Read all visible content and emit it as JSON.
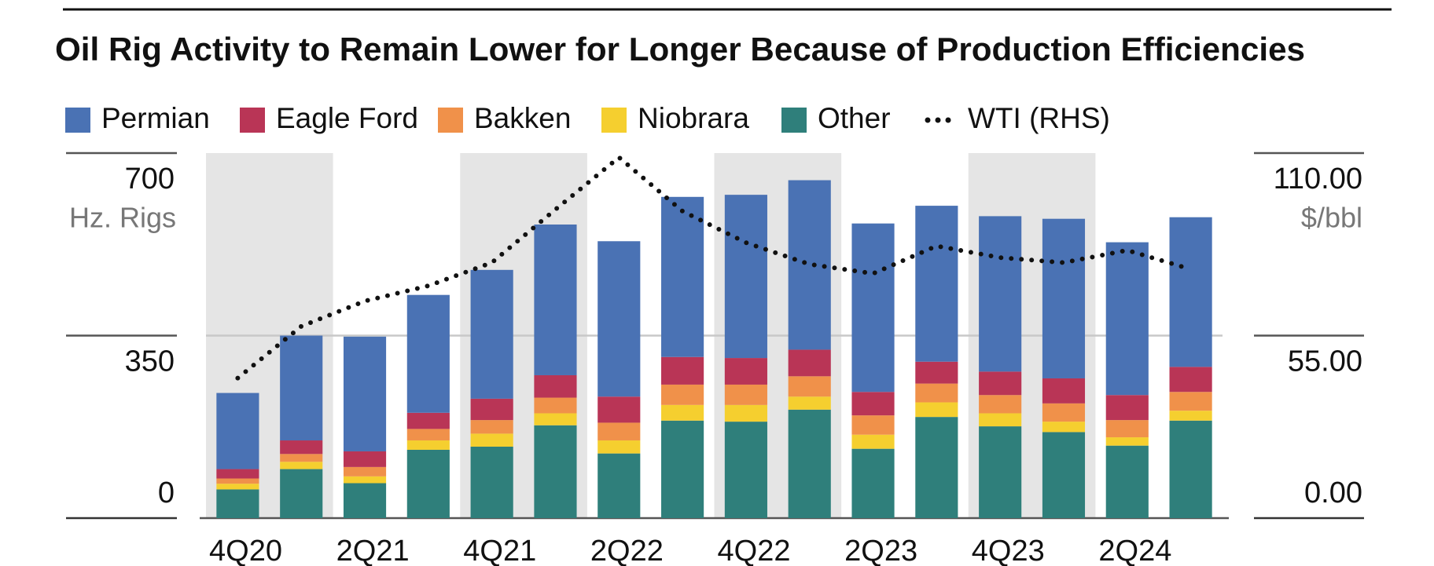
{
  "chart_data": {
    "type": "bar",
    "stacked": true,
    "title": "Oil Rig Activity to Remain Lower for Longer Because of Production Efficiencies",
    "y_label": "Hz. Rigs",
    "y2_label": "$/bbl",
    "categories": [
      "4Q20",
      null,
      "2Q21",
      null,
      "4Q21",
      null,
      "2Q22",
      null,
      "4Q22",
      null,
      "2Q23",
      null,
      "4Q23",
      null,
      "2Q24",
      null
    ],
    "series": [
      {
        "name": "Other",
        "color": "#2f7f7b",
        "values": [
          55,
          94,
          67,
          131,
          137,
          178,
          124,
          187,
          185,
          208,
          133,
          194,
          176,
          165,
          139,
          187
        ]
      },
      {
        "name": "Niobrara",
        "color": "#f5cf2f",
        "values": [
          11,
          14,
          13,
          18,
          25,
          23,
          25,
          30,
          32,
          25,
          27,
          28,
          25,
          20,
          16,
          19
        ]
      },
      {
        "name": "Bakken",
        "color": "#f0914a",
        "values": [
          10,
          15,
          18,
          22,
          26,
          30,
          34,
          39,
          39,
          39,
          37,
          36,
          35,
          35,
          33,
          36
        ]
      },
      {
        "name": "Eagle Ford",
        "color": "#b93556",
        "values": [
          18,
          26,
          30,
          31,
          41,
          43,
          50,
          53,
          51,
          51,
          45,
          42,
          45,
          48,
          48,
          48
        ]
      },
      {
        "name": "Permian",
        "color": "#4a72b4",
        "values": [
          146,
          201,
          220,
          226,
          247,
          289,
          298,
          307,
          313,
          325,
          323,
          299,
          298,
          306,
          293,
          287
        ]
      },
      {
        "name": "WTI (RHS)",
        "type": "line",
        "axis": "y2",
        "color": "#111111",
        "values": [
          42.2,
          57.8,
          65.4,
          70,
          77,
          93,
          108.7,
          92.5,
          83,
          76.5,
          73.7,
          82,
          78.5,
          77,
          80.7,
          75
        ]
      }
    ],
    "legend_order": [
      4,
      3,
      2,
      1,
      0,
      5
    ],
    "ylim": [
      0,
      700
    ],
    "yticks": [
      0,
      350,
      700
    ],
    "y2lim": [
      0,
      110
    ],
    "y2ticks": [
      {
        "value": 0,
        "label": "0.00"
      },
      {
        "value": 55,
        "label": "55.00"
      },
      {
        "value": 110,
        "label": "110.00"
      }
    ],
    "grid": true
  }
}
